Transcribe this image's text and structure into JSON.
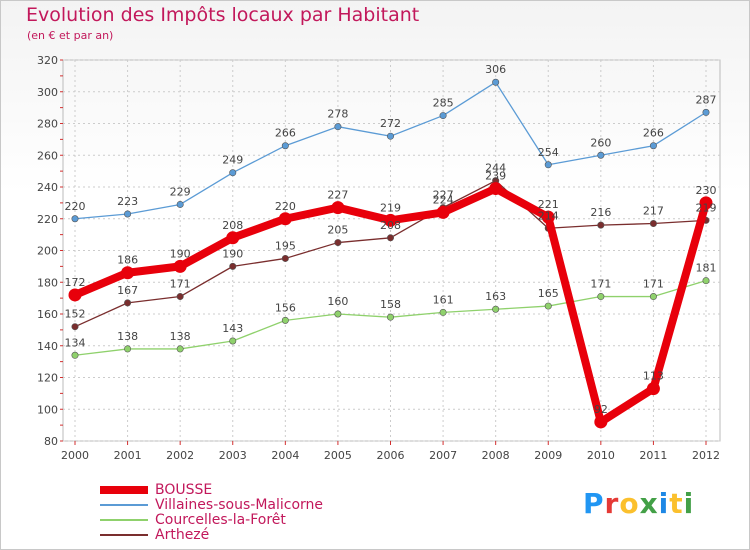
{
  "header": {
    "title": "Evolution des Impôts locaux par Habitant",
    "subtitle": "(en € et par an)"
  },
  "brand": {
    "text": "Proxiti",
    "letter_colors": [
      "#2196f3",
      "#e53935",
      "#fbc02d",
      "#43a047",
      "#1e88e5",
      "#fbc02d",
      "#43a047"
    ]
  },
  "chart_data": {
    "type": "line",
    "title": "Evolution des Impôts locaux par Habitant",
    "subtitle": "(en € et par an)",
    "xlabel": "",
    "ylabel": "",
    "x": [
      "2000",
      "2001",
      "2002",
      "2003",
      "2004",
      "2005",
      "2006",
      "2007",
      "2008",
      "2009",
      "2010",
      "2011",
      "2012"
    ],
    "ylim": [
      80,
      320
    ],
    "yticks": [
      80,
      100,
      120,
      140,
      160,
      180,
      200,
      220,
      240,
      260,
      280,
      300,
      320
    ],
    "grid": true,
    "legend_position": "bottom-left",
    "series": [
      {
        "name": "BOUSSE",
        "color": "#e8000b",
        "style": "thick",
        "values": [
          172,
          186,
          190,
          208,
          220,
          227,
          219,
          224,
          239,
          221,
          92,
          113,
          230
        ],
        "labels": [
          "172",
          "186",
          "190",
          "208",
          "220",
          "227",
          "219",
          "224",
          "239",
          "221",
          "92",
          "113",
          "230"
        ]
      },
      {
        "name": "Villaines-sous-Malicorne",
        "color": "#5b9bd5",
        "style": "thin",
        "values": [
          220,
          223,
          229,
          249,
          266,
          278,
          272,
          285,
          306,
          254,
          260,
          266,
          287
        ],
        "labels": [
          "220",
          "223",
          "229",
          "249",
          "266",
          "278",
          "272",
          "285",
          "306",
          "254",
          "260",
          "266",
          "287"
        ]
      },
      {
        "name": "Courcelles-la-Forêt",
        "color": "#8fd16c",
        "style": "thin",
        "values": [
          134,
          138,
          138,
          143,
          156,
          160,
          158,
          161,
          163,
          165,
          171,
          171,
          181
        ],
        "labels": [
          "134",
          "138",
          "138",
          "143",
          "156",
          "160",
          "158",
          "161",
          "163",
          "165",
          "171",
          "171",
          "181"
        ]
      },
      {
        "name": "Arthezé",
        "color": "#7a2e2e",
        "style": "thin",
        "values": [
          152,
          167,
          171,
          190,
          195,
          205,
          208,
          227,
          244,
          214,
          216,
          217,
          219
        ],
        "labels": [
          "152",
          "167",
          "171",
          "190",
          "195",
          "205",
          "208",
          "227",
          "244",
          "214",
          "216",
          "217",
          "219"
        ]
      }
    ]
  }
}
